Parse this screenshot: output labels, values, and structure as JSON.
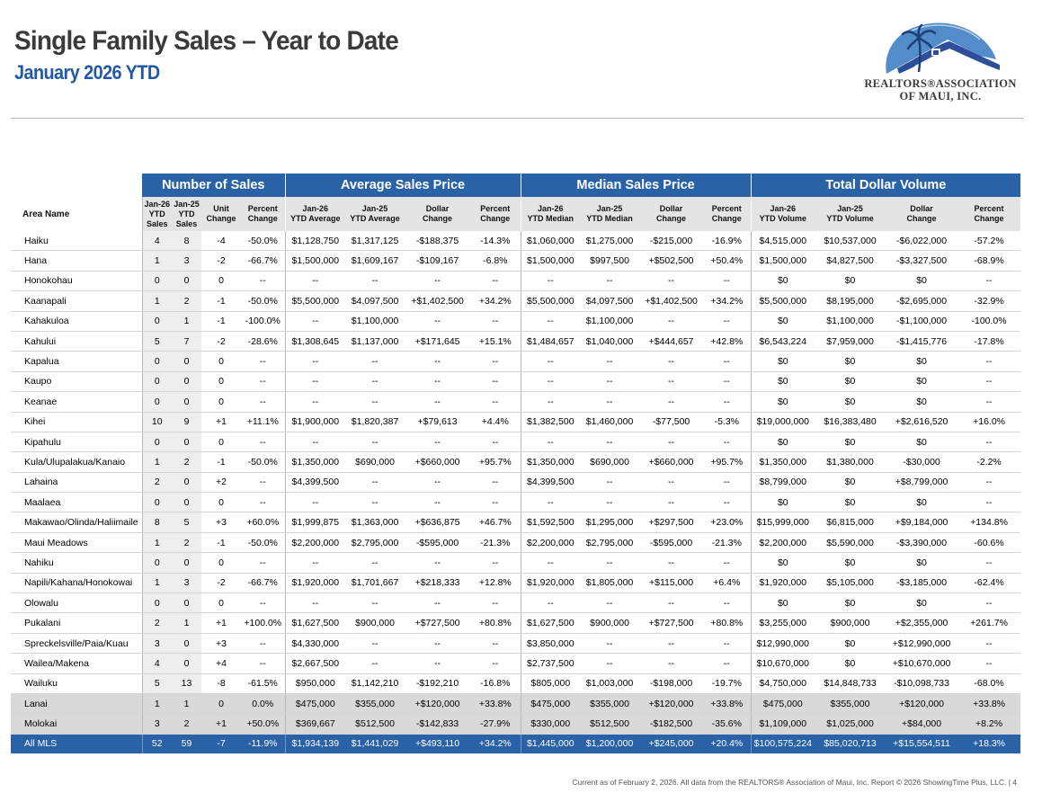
{
  "header": {
    "title": "Single Family Sales – Year to Date",
    "subtitle": "January 2026 YTD"
  },
  "logo": {
    "line1": "REALTORS®ASSOCIATION",
    "line2": "OF MAUI, INC.",
    "colors": {
      "sky": "#3f7fc4",
      "roof": "#2d4f9a",
      "palm": "#1e3f7a"
    }
  },
  "table": {
    "groups": [
      "Number of Sales",
      "Average Sales Price",
      "Median Sales Price",
      "Total Dollar Volume"
    ],
    "area_header": "Area Name",
    "columns": [
      [
        "Jan-26",
        "YTD",
        "Sales"
      ],
      [
        "Jan-25",
        "YTD",
        "Sales"
      ],
      [
        "Unit",
        "Change"
      ],
      [
        "Percent",
        "Change"
      ],
      [
        "Jan-26",
        "YTD Average"
      ],
      [
        "Jan-25",
        "YTD Average"
      ],
      [
        "Dollar",
        "Change"
      ],
      [
        "Percent",
        "Change"
      ],
      [
        "Jan-26",
        "YTD Median"
      ],
      [
        "Jan-25",
        "YTD Median"
      ],
      [
        "Dollar",
        "Change"
      ],
      [
        "Percent",
        "Change"
      ],
      [
        "Jan-26",
        "YTD Volume"
      ],
      [
        "Jan-25",
        "YTD Volume"
      ],
      [
        "Dollar",
        "Change"
      ],
      [
        "Percent",
        "Change"
      ]
    ],
    "rows": [
      {
        "area": "Haiku",
        "values": [
          "4",
          "8",
          "-4",
          "-50.0%",
          "$1,128,750",
          "$1,317,125",
          "-$188,375",
          "-14.3%",
          "$1,060,000",
          "$1,275,000",
          "-$215,000",
          "-16.9%",
          "$4,515,000",
          "$10,537,000",
          "-$6,022,000",
          "-57.2%"
        ]
      },
      {
        "area": "Hana",
        "values": [
          "1",
          "3",
          "-2",
          "-66.7%",
          "$1,500,000",
          "$1,609,167",
          "-$109,167",
          "-6.8%",
          "$1,500,000",
          "$997,500",
          "+$502,500",
          "+50.4%",
          "$1,500,000",
          "$4,827,500",
          "-$3,327,500",
          "-68.9%"
        ]
      },
      {
        "area": "Honokohau",
        "values": [
          "0",
          "0",
          "0",
          "--",
          "--",
          "--",
          "--",
          "--",
          "--",
          "--",
          "--",
          "--",
          "$0",
          "$0",
          "$0",
          "--"
        ]
      },
      {
        "area": "Kaanapali",
        "values": [
          "1",
          "2",
          "-1",
          "-50.0%",
          "$5,500,000",
          "$4,097,500",
          "+$1,402,500",
          "+34.2%",
          "$5,500,000",
          "$4,097,500",
          "+$1,402,500",
          "+34.2%",
          "$5,500,000",
          "$8,195,000",
          "-$2,695,000",
          "-32.9%"
        ]
      },
      {
        "area": "Kahakuloa",
        "values": [
          "0",
          "1",
          "-1",
          "-100.0%",
          "--",
          "$1,100,000",
          "--",
          "--",
          "--",
          "$1,100,000",
          "--",
          "--",
          "$0",
          "$1,100,000",
          "-$1,100,000",
          "-100.0%"
        ]
      },
      {
        "area": "Kahului",
        "values": [
          "5",
          "7",
          "-2",
          "-28.6%",
          "$1,308,645",
          "$1,137,000",
          "+$171,645",
          "+15.1%",
          "$1,484,657",
          "$1,040,000",
          "+$444,657",
          "+42.8%",
          "$6,543,224",
          "$7,959,000",
          "-$1,415,776",
          "-17.8%"
        ]
      },
      {
        "area": "Kapalua",
        "values": [
          "0",
          "0",
          "0",
          "--",
          "--",
          "--",
          "--",
          "--",
          "--",
          "--",
          "--",
          "--",
          "$0",
          "$0",
          "$0",
          "--"
        ]
      },
      {
        "area": "Kaupo",
        "values": [
          "0",
          "0",
          "0",
          "--",
          "--",
          "--",
          "--",
          "--",
          "--",
          "--",
          "--",
          "--",
          "$0",
          "$0",
          "$0",
          "--"
        ]
      },
      {
        "area": "Keanae",
        "values": [
          "0",
          "0",
          "0",
          "--",
          "--",
          "--",
          "--",
          "--",
          "--",
          "--",
          "--",
          "--",
          "$0",
          "$0",
          "$0",
          "--"
        ]
      },
      {
        "area": "Kihei",
        "values": [
          "10",
          "9",
          "+1",
          "+11.1%",
          "$1,900,000",
          "$1,820,387",
          "+$79,613",
          "+4.4%",
          "$1,382,500",
          "$1,460,000",
          "-$77,500",
          "-5.3%",
          "$19,000,000",
          "$16,383,480",
          "+$2,616,520",
          "+16.0%"
        ]
      },
      {
        "area": "Kipahulu",
        "values": [
          "0",
          "0",
          "0",
          "--",
          "--",
          "--",
          "--",
          "--",
          "--",
          "--",
          "--",
          "--",
          "$0",
          "$0",
          "$0",
          "--"
        ]
      },
      {
        "area": "Kula/Ulupalakua/Kanaio",
        "values": [
          "1",
          "2",
          "-1",
          "-50.0%",
          "$1,350,000",
          "$690,000",
          "+$660,000",
          "+95.7%",
          "$1,350,000",
          "$690,000",
          "+$660,000",
          "+95.7%",
          "$1,350,000",
          "$1,380,000",
          "-$30,000",
          "-2.2%"
        ]
      },
      {
        "area": "Lahaina",
        "values": [
          "2",
          "0",
          "+2",
          "--",
          "$4,399,500",
          "--",
          "--",
          "--",
          "$4,399,500",
          "--",
          "--",
          "--",
          "$8,799,000",
          "$0",
          "+$8,799,000",
          "--"
        ]
      },
      {
        "area": "Maalaea",
        "values": [
          "0",
          "0",
          "0",
          "--",
          "--",
          "--",
          "--",
          "--",
          "--",
          "--",
          "--",
          "--",
          "$0",
          "$0",
          "$0",
          "--"
        ]
      },
      {
        "area": "Makawao/Olinda/Haliimaile",
        "values": [
          "8",
          "5",
          "+3",
          "+60.0%",
          "$1,999,875",
          "$1,363,000",
          "+$636,875",
          "+46.7%",
          "$1,592,500",
          "$1,295,000",
          "+$297,500",
          "+23.0%",
          "$15,999,000",
          "$6,815,000",
          "+$9,184,000",
          "+134.8%"
        ]
      },
      {
        "area": "Maui Meadows",
        "values": [
          "1",
          "2",
          "-1",
          "-50.0%",
          "$2,200,000",
          "$2,795,000",
          "-$595,000",
          "-21.3%",
          "$2,200,000",
          "$2,795,000",
          "-$595,000",
          "-21.3%",
          "$2,200,000",
          "$5,590,000",
          "-$3,390,000",
          "-60.6%"
        ]
      },
      {
        "area": "Nahiku",
        "values": [
          "0",
          "0",
          "0",
          "--",
          "--",
          "--",
          "--",
          "--",
          "--",
          "--",
          "--",
          "--",
          "$0",
          "$0",
          "$0",
          "--"
        ]
      },
      {
        "area": "Napili/Kahana/Honokowai",
        "values": [
          "1",
          "3",
          "-2",
          "-66.7%",
          "$1,920,000",
          "$1,701,667",
          "+$218,333",
          "+12.8%",
          "$1,920,000",
          "$1,805,000",
          "+$115,000",
          "+6.4%",
          "$1,920,000",
          "$5,105,000",
          "-$3,185,000",
          "-62.4%"
        ]
      },
      {
        "area": "Olowalu",
        "values": [
          "0",
          "0",
          "0",
          "--",
          "--",
          "--",
          "--",
          "--",
          "--",
          "--",
          "--",
          "--",
          "$0",
          "$0",
          "$0",
          "--"
        ]
      },
      {
        "area": "Pukalani",
        "values": [
          "2",
          "1",
          "+1",
          "+100.0%",
          "$1,627,500",
          "$900,000",
          "+$727,500",
          "+80.8%",
          "$1,627,500",
          "$900,000",
          "+$727,500",
          "+80.8%",
          "$3,255,000",
          "$900,000",
          "+$2,355,000",
          "+261.7%"
        ]
      },
      {
        "area": "Spreckelsville/Paia/Kuau",
        "values": [
          "3",
          "0",
          "+3",
          "--",
          "$4,330,000",
          "--",
          "--",
          "--",
          "$3,850,000",
          "--",
          "--",
          "--",
          "$12,990,000",
          "$0",
          "+$12,990,000",
          "--"
        ]
      },
      {
        "area": "Wailea/Makena",
        "values": [
          "4",
          "0",
          "+4",
          "--",
          "$2,667,500",
          "--",
          "--",
          "--",
          "$2,737,500",
          "--",
          "--",
          "--",
          "$10,670,000",
          "$0",
          "+$10,670,000",
          "--"
        ]
      },
      {
        "area": "Wailuku",
        "values": [
          "5",
          "13",
          "-8",
          "-61.5%",
          "$950,000",
          "$1,142,210",
          "-$192,210",
          "-16.8%",
          "$805,000",
          "$1,003,000",
          "-$198,000",
          "-19.7%",
          "$4,750,000",
          "$14,848,733",
          "-$10,098,733",
          "-68.0%"
        ]
      },
      {
        "area": "Lanai",
        "type": "island",
        "values": [
          "1",
          "1",
          "0",
          "0.0%",
          "$475,000",
          "$355,000",
          "+$120,000",
          "+33.8%",
          "$475,000",
          "$355,000",
          "+$120,000",
          "+33.8%",
          "$475,000",
          "$355,000",
          "+$120,000",
          "+33.8%"
        ]
      },
      {
        "area": "Molokai",
        "type": "island",
        "values": [
          "3",
          "2",
          "+1",
          "+50.0%",
          "$369,667",
          "$512,500",
          "-$142,833",
          "-27.9%",
          "$330,000",
          "$512,500",
          "-$182,500",
          "-35.6%",
          "$1,109,000",
          "$1,025,000",
          "+$84,000",
          "+8.2%"
        ]
      },
      {
        "area": "All MLS",
        "type": "total",
        "values": [
          "52",
          "59",
          "-7",
          "-11.9%",
          "$1,934,139",
          "$1,441,029",
          "+$493,110",
          "+34.2%",
          "$1,445,000",
          "$1,200,000",
          "+$245,000",
          "+20.4%",
          "$100,575,224",
          "$85,020,713",
          "+$15,554,511",
          "+18.3%"
        ]
      }
    ]
  },
  "footer": "Current as of February 2, 2026. All data from the REALTORS® Association of Maui, Inc. Report © 2026 ShowingTime Plus, LLC.  |  4",
  "colors": {
    "header_blue": "#2a62a8",
    "subtitle_blue": "#2159a6",
    "title_gray": "#3a3a3a"
  }
}
